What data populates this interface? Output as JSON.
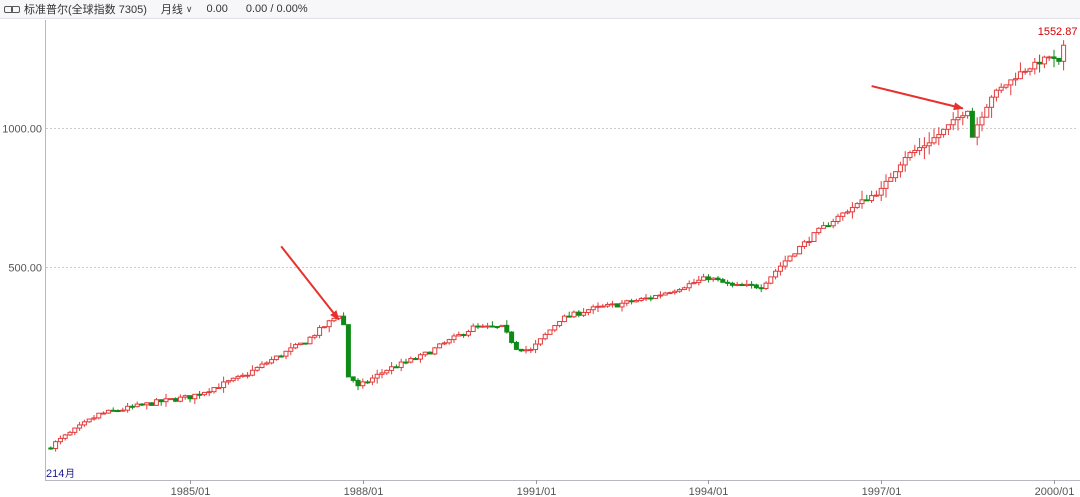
{
  "toolbar": {
    "index_name": "标准普尔(全球指数 7305)",
    "period": "月线",
    "value_a": "0.00",
    "value_b": "0.00 / 0.00%",
    "link_icon": "link-icon",
    "dropdown_icon": "chevron-down-icon"
  },
  "colors": {
    "up": "#e33b3b",
    "down": "#0e8a17",
    "arrow": "#e8312e",
    "grid": "#cccccc",
    "max_label": "#d40000"
  },
  "chart_data": {
    "type": "candlestick",
    "x_start": "1982/08",
    "x_end": "2000/03",
    "xlim": [
      "1982/07",
      "2000/06"
    ],
    "ylim": [
      173,
      1700
    ],
    "y_ticks": [
      {
        "value": 500,
        "label": "500.00"
      },
      {
        "value": 1000,
        "label": "1000.00"
      }
    ],
    "x_ticks": [
      {
        "date": "1985/01",
        "label": "1985/01"
      },
      {
        "date": "1988/01",
        "label": "1988/01"
      },
      {
        "date": "1991/01",
        "label": "1991/01"
      },
      {
        "date": "1994/01",
        "label": "1994/01"
      },
      {
        "date": "1997/01",
        "label": "1997/01"
      },
      {
        "date": "2000/01",
        "label": "2000/01"
      }
    ],
    "grid": true,
    "min_label": {
      "date": "1982/08",
      "value": 214,
      "label": "214"
    },
    "corner_label": "月",
    "max_label": {
      "date": "2000/03",
      "value": 1552.87,
      "label": "1552.87"
    },
    "trend": [
      [
        "1982/08",
        205
      ],
      [
        "1983/06",
        240
      ],
      [
        "1984/06",
        255
      ],
      [
        "1985/01",
        262
      ],
      [
        "1985/12",
        290
      ],
      [
        "1986/06",
        315
      ],
      [
        "1987/01",
        345
      ],
      [
        "1987/08",
        395
      ],
      [
        "1987/09",
        375
      ],
      [
        "1987/10",
        290
      ],
      [
        "1987/11",
        285
      ],
      [
        "1987/12",
        275
      ],
      [
        "1988/06",
        300
      ],
      [
        "1989/01",
        320
      ],
      [
        "1989/12",
        370
      ],
      [
        "1990/06",
        370
      ],
      [
        "1990/09",
        335
      ],
      [
        "1990/12",
        330
      ],
      [
        "1991/06",
        385
      ],
      [
        "1991/12",
        405
      ],
      [
        "1992/06",
        415
      ],
      [
        "1993/01",
        430
      ],
      [
        "1994/01",
        475
      ],
      [
        "1994/06",
        455
      ],
      [
        "1994/12",
        455
      ],
      [
        "1995/06",
        530
      ],
      [
        "1995/12",
        600
      ],
      [
        "1996/06",
        665
      ],
      [
        "1997/01",
        735
      ],
      [
        "1997/06",
        870
      ],
      [
        "1997/10",
        920
      ],
      [
        "1998/01",
        970
      ],
      [
        "1998/07",
        1100
      ],
      [
        "1998/08",
        960
      ],
      [
        "1998/09",
        1020
      ],
      [
        "1998/12",
        1175
      ],
      [
        "1999/06",
        1320
      ],
      [
        "1999/12",
        1430
      ],
      [
        "2000/02",
        1385
      ],
      [
        "2000/03",
        1500
      ]
    ],
    "annotations": [
      {
        "type": "arrow",
        "from": {
          "date": "1986/08",
          "value": 555
        },
        "to": {
          "date": "1987/08",
          "value": 385
        }
      },
      {
        "type": "arrow",
        "from": {
          "date": "1996/11",
          "value": 1235
        },
        "to": {
          "date": "1998/06",
          "value": 1105
        }
      }
    ]
  }
}
